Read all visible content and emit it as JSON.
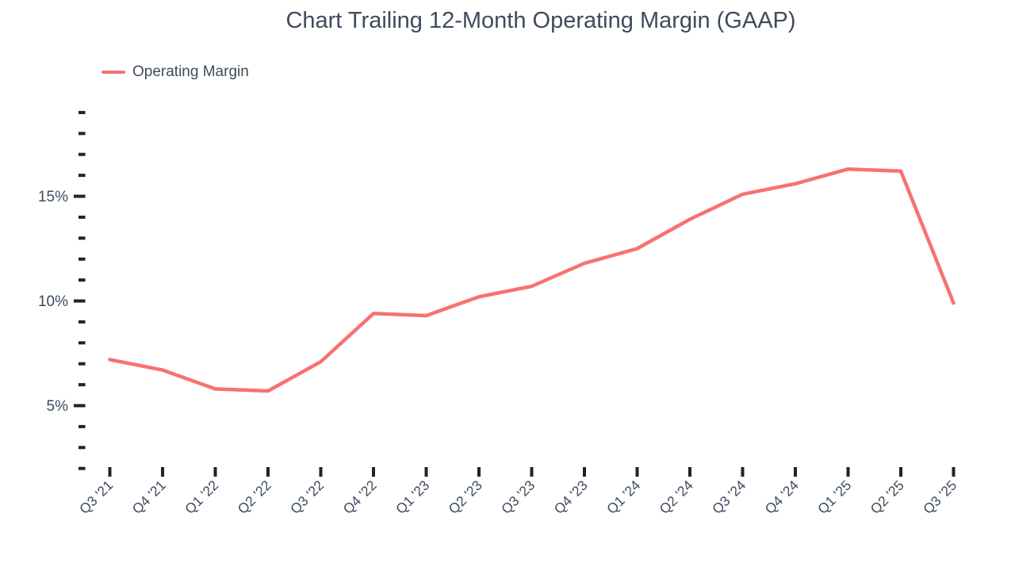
{
  "chart_data": {
    "type": "line",
    "title": "Chart Trailing 12-Month Operating Margin (GAAP)",
    "xlabel": "",
    "ylabel": "",
    "grid": false,
    "legend_position": "top-left",
    "categories": [
      "Q3 '21",
      "Q4 '21",
      "Q1 '22",
      "Q2 '22",
      "Q3 '22",
      "Q4 '22",
      "Q1 '23",
      "Q2 '23",
      "Q3 '23",
      "Q4 '23",
      "Q1 '24",
      "Q2 '24",
      "Q3 '24",
      "Q4 '24",
      "Q1 '25",
      "Q2 '25",
      "Q3 '25"
    ],
    "series": [
      {
        "name": "Operating Margin",
        "values": [
          7.2,
          6.7,
          5.8,
          5.7,
          7.1,
          9.4,
          9.3,
          10.2,
          10.7,
          11.8,
          12.5,
          13.9,
          15.1,
          15.6,
          16.3,
          16.2,
          9.9
        ]
      }
    ],
    "y_axis": {
      "unit": "%",
      "min": 2,
      "max": 19,
      "minor_step": 1,
      "major_ticks": [
        5,
        10,
        15
      ],
      "major_labels": [
        "5%",
        "10%",
        "15%"
      ]
    },
    "colors": {
      "line": "#f87171",
      "text": "#3f4b5c",
      "tick": "#1d222b"
    }
  }
}
